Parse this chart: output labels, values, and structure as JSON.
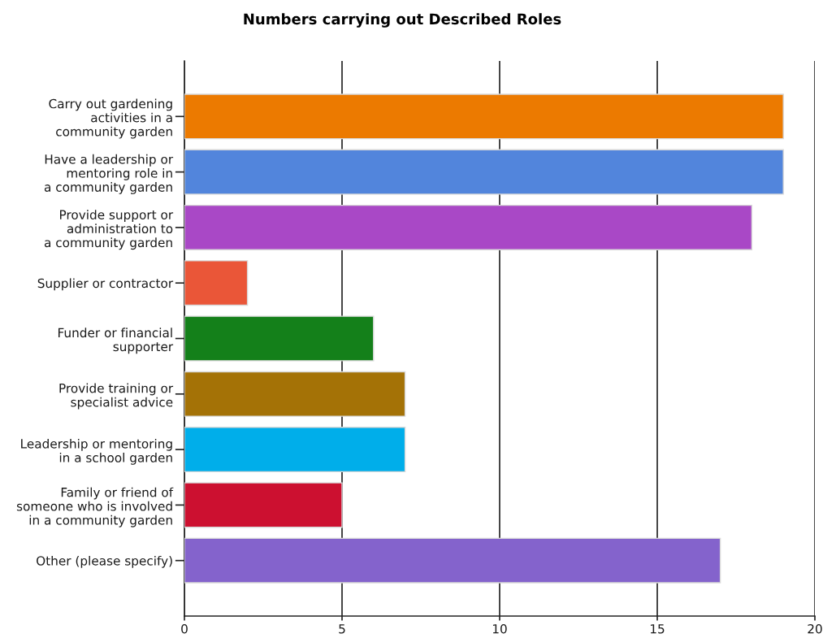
{
  "chart_data": {
    "type": "bar",
    "orientation": "horizontal",
    "title": "Numbers carrying out Described Roles",
    "categories": [
      "Carry out gardening\nactivities in a\ncommunity garden",
      "Have a leadership or\nmentoring role in\na community garden",
      "Provide support or\nadministration to\na community garden",
      "Supplier or contractor",
      "Funder or financial\nsupporter",
      "Provide training or\nspecialist advice",
      "Leadership or mentoring\nin a school garden",
      "Family or friend of\nsomeone who is involved\nin a community garden",
      "Other (please specify)"
    ],
    "values": [
      19,
      19,
      18,
      2,
      6,
      7,
      7,
      5,
      17
    ],
    "colors": [
      "#ec7a00",
      "#5285dc",
      "#a948c6",
      "#ea5638",
      "#14801a",
      "#a47206",
      "#00aeea",
      "#cc1030",
      "#8463cc"
    ],
    "xlim": [
      0,
      20
    ],
    "xticks": [
      0,
      5,
      10,
      15,
      20
    ],
    "grid": "x"
  }
}
